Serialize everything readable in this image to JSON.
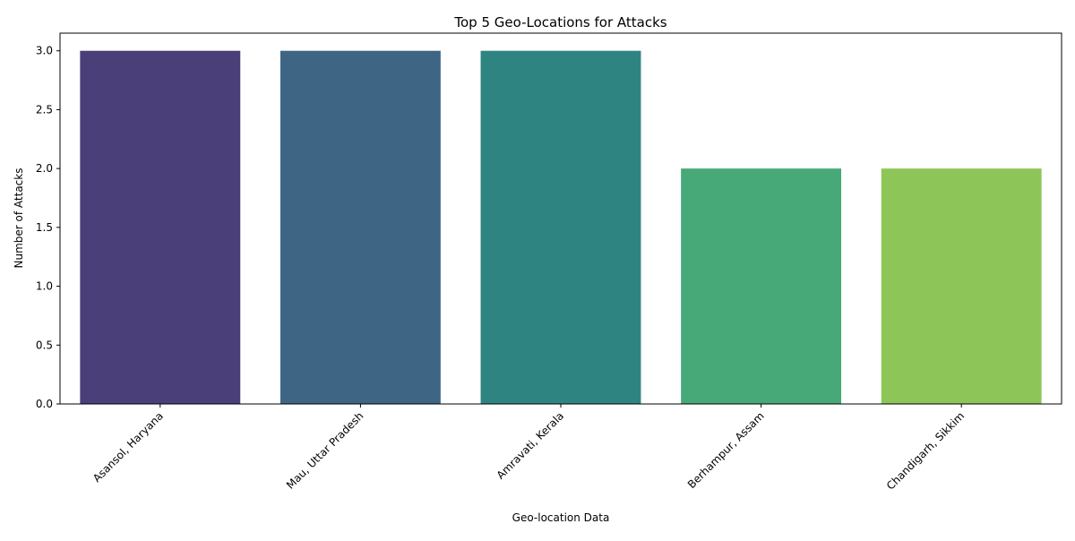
{
  "chart_data": {
    "type": "bar",
    "title": "Top 5 Geo-Locations for Attacks",
    "xlabel": "Geo-location Data",
    "ylabel": "Number of Attacks",
    "categories": [
      "Asansol, Haryana",
      "Mau, Uttar Pradesh",
      "Amravati, Kerala",
      "Berhampur, Assam",
      "Chandigarh, Sikkim"
    ],
    "values": [
      3,
      3,
      3,
      2,
      2
    ],
    "ylim": [
      0,
      3.15
    ],
    "yticks": [
      0.0,
      0.5,
      1.0,
      1.5,
      2.0,
      2.5,
      3.0
    ],
    "ytick_labels": [
      "0.0",
      "0.5",
      "1.0",
      "1.5",
      "2.0",
      "2.5",
      "3.0"
    ],
    "colors": [
      "#4a3f78",
      "#3e6684",
      "#2e8480",
      "#47a878",
      "#8ec558"
    ],
    "grid": false,
    "legend": "none",
    "xtick_rotation_deg": 45
  }
}
